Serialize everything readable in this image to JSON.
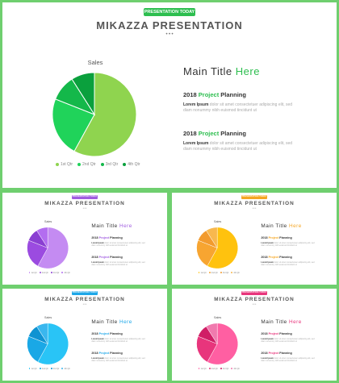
{
  "slides": [
    {
      "badge": "PRESENTATION TODAY",
      "title": "MIKAZZA PRESENTATION",
      "dots": "•••",
      "accent": "#2dbe4f",
      "main_title": {
        "prefix": "Main Title ",
        "highlight": "Here"
      },
      "sections": [
        {
          "year": "2018 ",
          "highlight": "Project",
          "rest": " Planning",
          "lead": "Lorem Ipsum",
          "body": " dolor sit amet consectetuer adipiscing elit, sed diam nonummy nibh euismod tincidunt ut"
        },
        {
          "year": "2018 ",
          "highlight": "Project",
          "rest": " Planning",
          "lead": "Lorem Ipsum",
          "body": " dolor sit amet consectetuer adipiscing elit, sed diam nonummy nibh euismod tincidunt ut"
        }
      ],
      "chart_data": {
        "type": "pie",
        "title": "Sales",
        "categories": [
          "1st Qtr",
          "2nd Qtr",
          "3rd Qtr",
          "4th Qtr"
        ],
        "values": [
          58,
          23,
          10,
          9
        ],
        "colors": [
          "#8fd44f",
          "#20d35a",
          "#14b84a",
          "#0aa03d"
        ]
      }
    },
    {
      "badge": "PRESENTATION TODAY",
      "title": "MIKAZZA PRESENTATION",
      "dots": "•••",
      "accent": "#a05ce0",
      "main_title": {
        "prefix": "Main Title ",
        "highlight": "Here"
      },
      "sections": [
        {
          "year": "2018 ",
          "highlight": "Project",
          "rest": " Planning",
          "lead": "Lorem Ipsum",
          "body": " dolor sit amet consectetuer adipiscing elit, sed diam nonummy nibh euismod tincidunt ut"
        },
        {
          "year": "2018 ",
          "highlight": "Project",
          "rest": " Planning",
          "lead": "Lorem Ipsum",
          "body": " dolor sit amet consectetuer adipiscing elit, sed diam nonummy nibh euismod tincidunt ut"
        }
      ],
      "chart_data": {
        "type": "pie",
        "title": "Sales",
        "categories": [
          "1st Qtr",
          "2nd Qtr",
          "3rd Qtr",
          "4th Qtr"
        ],
        "values": [
          58,
          23,
          10,
          9
        ],
        "colors": [
          "#c48bf2",
          "#9b4be0",
          "#8a3fd2",
          "#b36df0"
        ]
      }
    },
    {
      "badge": "PRESENTATION TODAY",
      "title": "MIKAZZA PRESENTATION",
      "dots": "•••",
      "accent": "#f5a623",
      "main_title": {
        "prefix": "Main Title ",
        "highlight": "Here"
      },
      "sections": [
        {
          "year": "2018 ",
          "highlight": "Project",
          "rest": " Planning",
          "lead": "Lorem Ipsum",
          "body": " dolor sit amet consectetuer adipiscing elit, sed diam nonummy nibh euismod tincidunt ut"
        },
        {
          "year": "2018 ",
          "highlight": "Project",
          "rest": " Planning",
          "lead": "Lorem Ipsum",
          "body": " dolor sit amet consectetuer adipiscing elit, sed diam nonummy nibh euismod tincidunt ut"
        }
      ],
      "chart_data": {
        "type": "pie",
        "title": "Sales",
        "categories": [
          "1st Qtr",
          "2nd Qtr",
          "3rd Qtr",
          "4th Qtr"
        ],
        "values": [
          58,
          23,
          10,
          9
        ],
        "colors": [
          "#ffc20e",
          "#f7a531",
          "#f29b2e",
          "#f8b84e"
        ]
      }
    },
    {
      "badge": "PRESENTATION TODAY",
      "title": "MIKAZZA PRESENTATION",
      "dots": "•••",
      "accent": "#1ea7e8",
      "main_title": {
        "prefix": "Main Title ",
        "highlight": "Here"
      },
      "sections": [
        {
          "year": "2018 ",
          "highlight": "Project",
          "rest": " Planning",
          "lead": "Lorem Ipsum",
          "body": " dolor sit amet consectetuer adipiscing elit, sed diam nonummy nibh euismod tincidunt ut"
        },
        {
          "year": "2018 ",
          "highlight": "Project",
          "rest": " Planning",
          "lead": "Lorem Ipsum",
          "body": " dolor sit amet consectetuer adipiscing elit, sed diam nonummy nibh euismod tincidunt ut"
        }
      ],
      "chart_data": {
        "type": "pie",
        "title": "Sales",
        "categories": [
          "1st Qtr",
          "2nd Qtr",
          "3rd Qtr",
          "4th Qtr"
        ],
        "values": [
          58,
          23,
          10,
          9
        ],
        "colors": [
          "#29c4f6",
          "#1aa8e6",
          "#0f93d2",
          "#3ab7ee"
        ]
      }
    },
    {
      "badge": "PRESENTATION TODAY",
      "title": "MIKAZZA PRESENTATION",
      "dots": "•••",
      "accent": "#e8357c",
      "main_title": {
        "prefix": "Main Title ",
        "highlight": "Here"
      },
      "sections": [
        {
          "year": "2018 ",
          "highlight": "Project",
          "rest": " Planning",
          "lead": "Lorem Ipsum",
          "body": " dolor sit amet consectetuer adipiscing elit, sed diam nonummy nibh euismod tincidunt ut"
        },
        {
          "year": "2018 ",
          "highlight": "Project",
          "rest": " Planning",
          "lead": "Lorem Ipsum",
          "body": " dolor sit amet consectetuer adipiscing elit, sed diam nonummy nibh euismod tincidunt ut"
        }
      ],
      "chart_data": {
        "type": "pie",
        "title": "Sales",
        "categories": [
          "1st Qtr",
          "2nd Qtr",
          "3rd Qtr",
          "4th Qtr"
        ],
        "values": [
          58,
          23,
          10,
          9
        ],
        "colors": [
          "#ff5fa2",
          "#e8357c",
          "#d01e66",
          "#f07aae"
        ]
      }
    }
  ]
}
